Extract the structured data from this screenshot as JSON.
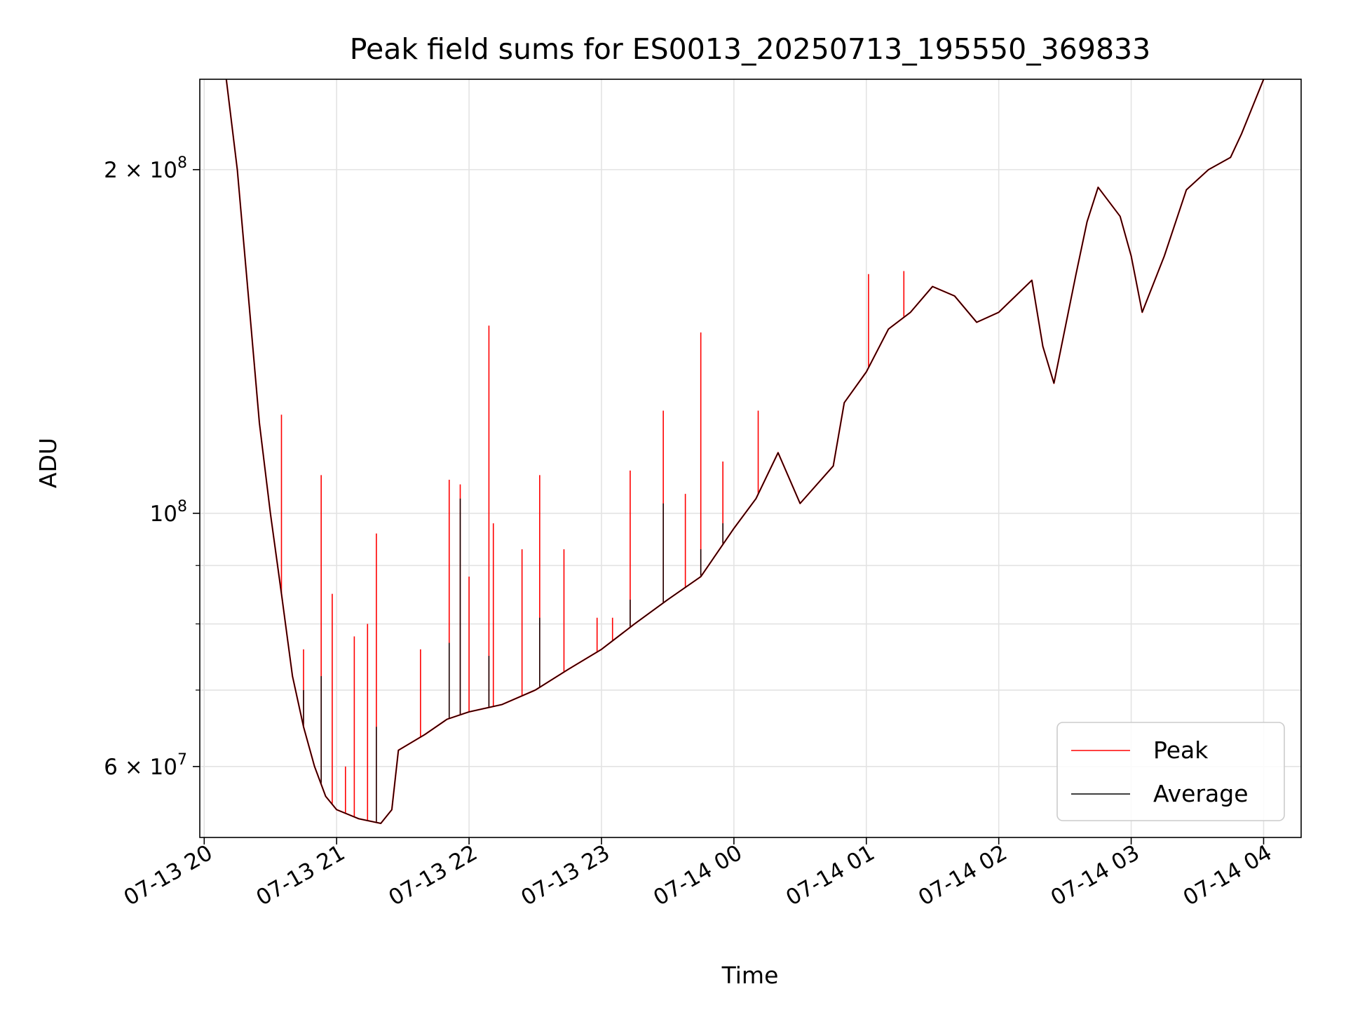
{
  "chart_data": {
    "type": "line",
    "title": "Peak field sums for ES0013_20250713_195550_369833",
    "xlabel": "Time",
    "ylabel": "ADU",
    "yscale": "log",
    "grid": true,
    "legend_position": "bottom-right",
    "x_ticks": [
      "07-13 20",
      "07-13 21",
      "07-13 22",
      "07-13 23",
      "07-14 00",
      "07-14 01",
      "07-14 02",
      "07-14 03",
      "07-14 04"
    ],
    "y_ticks": [
      {
        "value": 60000000,
        "label_base": "6 × 10",
        "label_exp": "7"
      },
      {
        "value": 100000000,
        "label_base": "10",
        "label_exp": "8"
      },
      {
        "value": 200000000,
        "label_base": "2 × 10",
        "label_exp": "8"
      }
    ],
    "y_minor_ticks": [
      70000000,
      80000000,
      90000000
    ],
    "xlim": [
      "2025-07-13 19:58",
      "2025-07-14 04:17"
    ],
    "ylim": [
      52000000,
      240000000
    ],
    "series": [
      {
        "name": "Peak",
        "color": "#ff0000",
        "points": [
          [
            "2025-07-13 20:10",
            240000000
          ],
          [
            "2025-07-13 20:15",
            200000000
          ],
          [
            "2025-07-13 20:20",
            155000000
          ],
          [
            "2025-07-13 20:25",
            120000000
          ],
          [
            "2025-07-13 20:30",
            100000000
          ],
          [
            "2025-07-13 20:35",
            85000000
          ],
          [
            "2025-07-13 20:40",
            72000000
          ],
          [
            "2025-07-13 20:45",
            65000000
          ],
          [
            "2025-07-13 20:50",
            60000000
          ],
          [
            "2025-07-13 20:55",
            56500000
          ],
          [
            "2025-07-13 21:00",
            55000000
          ],
          [
            "2025-07-13 21:10",
            54000000
          ],
          [
            "2025-07-13 21:20",
            53500000
          ],
          [
            "2025-07-13 21:25",
            55000000
          ],
          [
            "2025-07-13 21:28",
            62000000
          ],
          [
            "2025-07-13 21:40",
            64000000
          ],
          [
            "2025-07-13 21:50",
            66000000
          ],
          [
            "2025-07-13 22:00",
            67000000
          ],
          [
            "2025-07-13 22:15",
            68000000
          ],
          [
            "2025-07-13 22:30",
            70000000
          ],
          [
            "2025-07-13 22:45",
            73000000
          ],
          [
            "2025-07-13 23:00",
            76000000
          ],
          [
            "2025-07-13 23:15",
            80000000
          ],
          [
            "2025-07-13 23:30",
            84000000
          ],
          [
            "2025-07-13 23:45",
            88000000
          ],
          [
            "2025-07-14 00:00",
            97000000
          ],
          [
            "2025-07-14 00:10",
            103000000
          ],
          [
            "2025-07-14 00:20",
            113000000
          ],
          [
            "2025-07-14 00:30",
            102000000
          ],
          [
            "2025-07-14 00:45",
            110000000
          ],
          [
            "2025-07-14 00:50",
            125000000
          ],
          [
            "2025-07-14 01:00",
            133000000
          ],
          [
            "2025-07-14 01:10",
            145000000
          ],
          [
            "2025-07-14 01:20",
            150000000
          ],
          [
            "2025-07-14 01:30",
            158000000
          ],
          [
            "2025-07-14 01:40",
            155000000
          ],
          [
            "2025-07-14 01:50",
            147000000
          ],
          [
            "2025-07-14 02:00",
            150000000
          ],
          [
            "2025-07-14 02:15",
            160000000
          ],
          [
            "2025-07-14 02:20",
            140000000
          ],
          [
            "2025-07-14 02:25",
            130000000
          ],
          [
            "2025-07-14 02:35",
            162000000
          ],
          [
            "2025-07-14 02:40",
            180000000
          ],
          [
            "2025-07-14 02:45",
            193000000
          ],
          [
            "2025-07-14 02:55",
            182000000
          ],
          [
            "2025-07-14 03:00",
            168000000
          ],
          [
            "2025-07-14 03:05",
            150000000
          ],
          [
            "2025-07-14 03:15",
            168000000
          ],
          [
            "2025-07-14 03:25",
            192000000
          ],
          [
            "2025-07-14 03:35",
            200000000
          ],
          [
            "2025-07-14 03:45",
            205000000
          ],
          [
            "2025-07-14 03:50",
            215000000
          ],
          [
            "2025-07-14 04:00",
            240000000
          ]
        ],
        "spikes": [
          [
            "2025-07-13 20:35",
            122000000
          ],
          [
            "2025-07-13 20:45",
            76000000
          ],
          [
            "2025-07-13 20:53",
            108000000
          ],
          [
            "2025-07-13 20:58",
            85000000
          ],
          [
            "2025-07-13 21:04",
            60000000
          ],
          [
            "2025-07-13 21:08",
            78000000
          ],
          [
            "2025-07-13 21:14",
            80000000
          ],
          [
            "2025-07-13 21:18",
            96000000
          ],
          [
            "2025-07-13 21:38",
            76000000
          ],
          [
            "2025-07-13 21:51",
            107000000
          ],
          [
            "2025-07-13 21:56",
            106000000
          ],
          [
            "2025-07-13 22:00",
            88000000
          ],
          [
            "2025-07-13 22:09",
            146000000
          ],
          [
            "2025-07-13 22:11",
            98000000
          ],
          [
            "2025-07-13 22:24",
            93000000
          ],
          [
            "2025-07-13 22:32",
            108000000
          ],
          [
            "2025-07-13 22:43",
            93000000
          ],
          [
            "2025-07-13 22:58",
            81000000
          ],
          [
            "2025-07-13 23:05",
            81000000
          ],
          [
            "2025-07-13 23:13",
            109000000
          ],
          [
            "2025-07-13 23:28",
            123000000
          ],
          [
            "2025-07-13 23:38",
            104000000
          ],
          [
            "2025-07-13 23:45",
            144000000
          ],
          [
            "2025-07-13 23:55",
            111000000
          ],
          [
            "2025-07-14 00:11",
            123000000
          ],
          [
            "2025-07-14 01:01",
            162000000
          ],
          [
            "2025-07-14 01:17",
            163000000
          ]
        ]
      },
      {
        "name": "Average",
        "color": "#000000",
        "points": [
          [
            "2025-07-13 20:10",
            240000000
          ],
          [
            "2025-07-13 20:15",
            200000000
          ],
          [
            "2025-07-13 20:20",
            155000000
          ],
          [
            "2025-07-13 20:25",
            120000000
          ],
          [
            "2025-07-13 20:30",
            100000000
          ],
          [
            "2025-07-13 20:35",
            85000000
          ],
          [
            "2025-07-13 20:40",
            72000000
          ],
          [
            "2025-07-13 20:45",
            65000000
          ],
          [
            "2025-07-13 20:50",
            60000000
          ],
          [
            "2025-07-13 20:55",
            56500000
          ],
          [
            "2025-07-13 21:00",
            55000000
          ],
          [
            "2025-07-13 21:10",
            54000000
          ],
          [
            "2025-07-13 21:20",
            53500000
          ],
          [
            "2025-07-13 21:25",
            55000000
          ],
          [
            "2025-07-13 21:28",
            62000000
          ],
          [
            "2025-07-13 21:40",
            64000000
          ],
          [
            "2025-07-13 21:50",
            66000000
          ],
          [
            "2025-07-13 22:00",
            67000000
          ],
          [
            "2025-07-13 22:15",
            68000000
          ],
          [
            "2025-07-13 22:30",
            70000000
          ],
          [
            "2025-07-13 22:45",
            73000000
          ],
          [
            "2025-07-13 23:00",
            76000000
          ],
          [
            "2025-07-13 23:15",
            80000000
          ],
          [
            "2025-07-13 23:30",
            84000000
          ],
          [
            "2025-07-13 23:45",
            88000000
          ],
          [
            "2025-07-14 00:00",
            97000000
          ],
          [
            "2025-07-14 00:10",
            103000000
          ],
          [
            "2025-07-14 00:20",
            113000000
          ],
          [
            "2025-07-14 00:30",
            102000000
          ],
          [
            "2025-07-14 00:45",
            110000000
          ],
          [
            "2025-07-14 00:50",
            125000000
          ],
          [
            "2025-07-14 01:00",
            133000000
          ],
          [
            "2025-07-14 01:10",
            145000000
          ],
          [
            "2025-07-14 01:20",
            150000000
          ],
          [
            "2025-07-14 01:30",
            158000000
          ],
          [
            "2025-07-14 01:40",
            155000000
          ],
          [
            "2025-07-14 01:50",
            147000000
          ],
          [
            "2025-07-14 02:00",
            150000000
          ],
          [
            "2025-07-14 02:15",
            160000000
          ],
          [
            "2025-07-14 02:20",
            140000000
          ],
          [
            "2025-07-14 02:25",
            130000000
          ],
          [
            "2025-07-14 02:35",
            162000000
          ],
          [
            "2025-07-14 02:40",
            180000000
          ],
          [
            "2025-07-14 02:45",
            193000000
          ],
          [
            "2025-07-14 02:55",
            182000000
          ],
          [
            "2025-07-14 03:00",
            168000000
          ],
          [
            "2025-07-14 03:05",
            150000000
          ],
          [
            "2025-07-14 03:15",
            168000000
          ],
          [
            "2025-07-14 03:25",
            192000000
          ],
          [
            "2025-07-14 03:35",
            200000000
          ],
          [
            "2025-07-14 03:45",
            205000000
          ],
          [
            "2025-07-14 03:50",
            215000000
          ],
          [
            "2025-07-14 04:00",
            240000000
          ]
        ],
        "spikes": [
          [
            "2025-07-13 20:45",
            70000000
          ],
          [
            "2025-07-13 20:53",
            72000000
          ],
          [
            "2025-07-13 21:18",
            65000000
          ],
          [
            "2025-07-13 21:51",
            77000000
          ],
          [
            "2025-07-13 21:56",
            103000000
          ],
          [
            "2025-07-13 22:09",
            75000000
          ],
          [
            "2025-07-13 22:32",
            81000000
          ],
          [
            "2025-07-13 23:13",
            84000000
          ],
          [
            "2025-07-13 23:28",
            102000000
          ],
          [
            "2025-07-13 23:45",
            93000000
          ],
          [
            "2025-07-13 23:55",
            98000000
          ]
        ]
      }
    ]
  }
}
